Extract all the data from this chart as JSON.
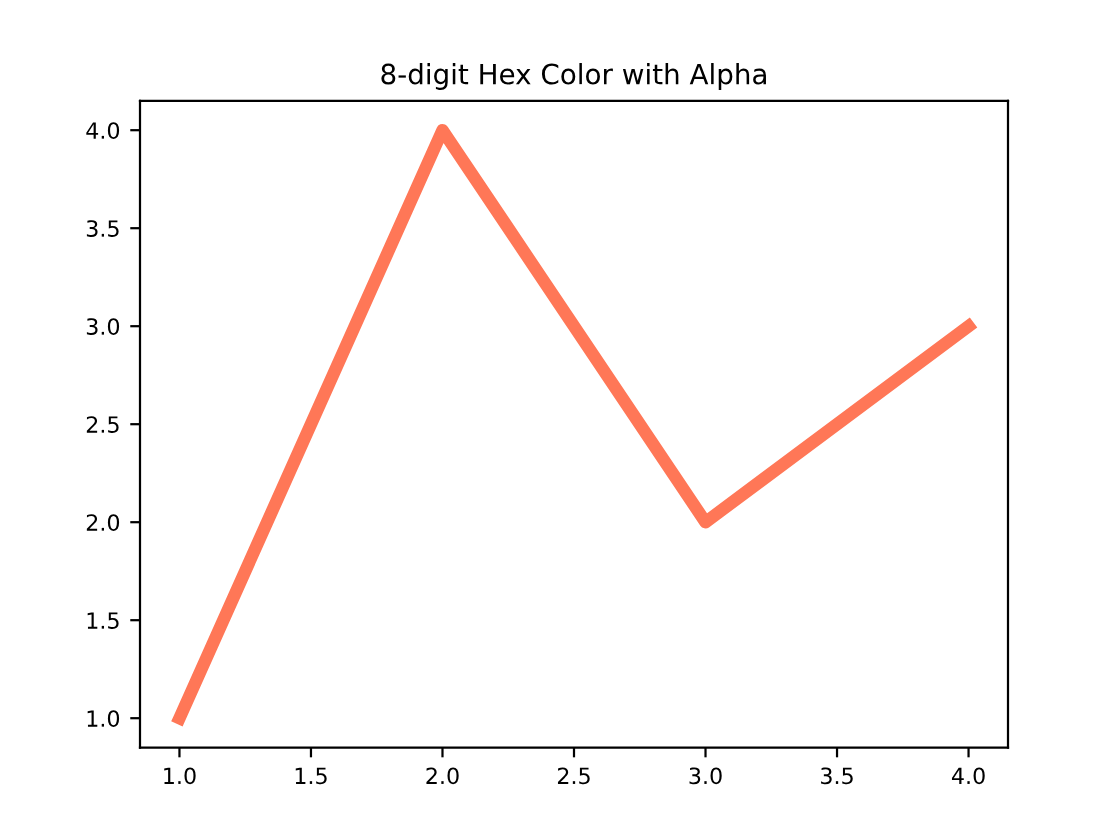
{
  "chart_data": {
    "type": "line",
    "title": "8-digit Hex Color with Alpha",
    "x": [
      1.0,
      2.0,
      3.0,
      4.0
    ],
    "series": [
      {
        "color": "#ff7757",
        "values": [
          1.0,
          4.0,
          2.0,
          3.0
        ]
      }
    ],
    "xlim": [
      0.85,
      4.15
    ],
    "ylim": [
      0.85,
      4.15
    ],
    "xticks": [
      {
        "value": 1,
        "label": "1.0"
      },
      1.5,
      {
        "value": 2,
        "label": "2.0"
      },
      2.5,
      {
        "value": 3,
        "label": "3.0"
      },
      3.5,
      {
        "value": 4,
        "label": "4.0"
      }
    ],
    "yticks": [
      {
        "value": 1,
        "label": "1.0"
      },
      1.5,
      {
        "value": 2,
        "label": "2.0"
      },
      2.5,
      {
        "value": 3,
        "label": "3.0"
      },
      3.5,
      {
        "value": 4,
        "label": "4.0"
      }
    ],
    "grid": false,
    "legend": false,
    "marker": "none",
    "line_style": "solid"
  }
}
